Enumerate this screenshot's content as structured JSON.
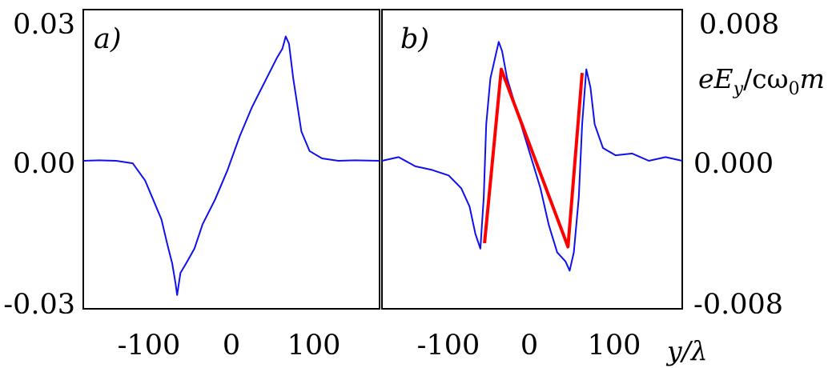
{
  "chart_data": [
    {
      "type": "line",
      "panel_label": "a)",
      "xlim": [
        -180,
        180
      ],
      "ylim": [
        -0.03,
        0.03
      ],
      "yticks": [
        "0.03",
        "0.00",
        "-0.03"
      ],
      "xticks": [
        "-100",
        "0",
        "100"
      ],
      "series": [
        {
          "color": "#1010ee",
          "x": [
            -180,
            -160,
            -140,
            -120,
            -105,
            -95,
            -85,
            -78,
            -72,
            -68,
            -66,
            -62,
            -55,
            -45,
            -35,
            -20,
            -5,
            10,
            25,
            40,
            55,
            62,
            66,
            70,
            75,
            85,
            95,
            110,
            130,
            150,
            180
          ],
          "y": [
            0.0,
            0.0001,
            0.0,
            -0.0005,
            -0.004,
            -0.008,
            -0.012,
            -0.017,
            -0.021,
            -0.025,
            -0.0275,
            -0.023,
            -0.021,
            -0.018,
            -0.013,
            -0.008,
            -0.002,
            0.005,
            0.011,
            0.016,
            0.021,
            0.023,
            0.0255,
            0.024,
            0.017,
            0.006,
            0.002,
            0.0005,
            0.0,
            0.0001,
            0.0
          ]
        }
      ]
    },
    {
      "type": "line",
      "panel_label": "b)",
      "xlim": [
        -180,
        180
      ],
      "ylim": [
        -0.008,
        0.008
      ],
      "yticks": [
        "0.008",
        "0.000",
        "-0.008"
      ],
      "xticks": [
        "-100",
        "0",
        "100"
      ],
      "series": [
        {
          "color": "#1010ee",
          "x": [
            -180,
            -160,
            -140,
            -120,
            -100,
            -85,
            -75,
            -68,
            -62,
            -58,
            -55,
            -50,
            -45,
            -40,
            -36,
            -30,
            -20,
            -10,
            0,
            10,
            20,
            30,
            40,
            45,
            50,
            56,
            60,
            65,
            70,
            75,
            85,
            100,
            120,
            140,
            160,
            180
          ],
          "y": [
            0.0,
            0.0002,
            -0.0003,
            -0.0005,
            -0.0008,
            -0.0015,
            -0.0025,
            -0.004,
            -0.0048,
            -0.002,
            0.002,
            0.0045,
            0.0055,
            0.0065,
            0.006,
            0.0045,
            0.003,
            0.0015,
            0.0,
            -0.0015,
            -0.0035,
            -0.005,
            -0.0055,
            -0.006,
            -0.005,
            -0.002,
            0.002,
            0.005,
            0.004,
            0.002,
            0.0007,
            0.0003,
            0.0004,
            0.0,
            0.0002,
            0.0
          ]
        },
        {
          "color": "#ff0000",
          "x": [
            -57,
            -37,
            43,
            60
          ],
          "y": [
            -0.0045,
            0.005,
            -0.0047,
            0.0048
          ]
        }
      ]
    }
  ],
  "axis_titles": {
    "x": "y/λ",
    "y_right": "eE",
    "y_right_sub": "y",
    "y_right_mid": "/cω",
    "y_right_sub2": "0",
    "y_right_end": "m"
  }
}
